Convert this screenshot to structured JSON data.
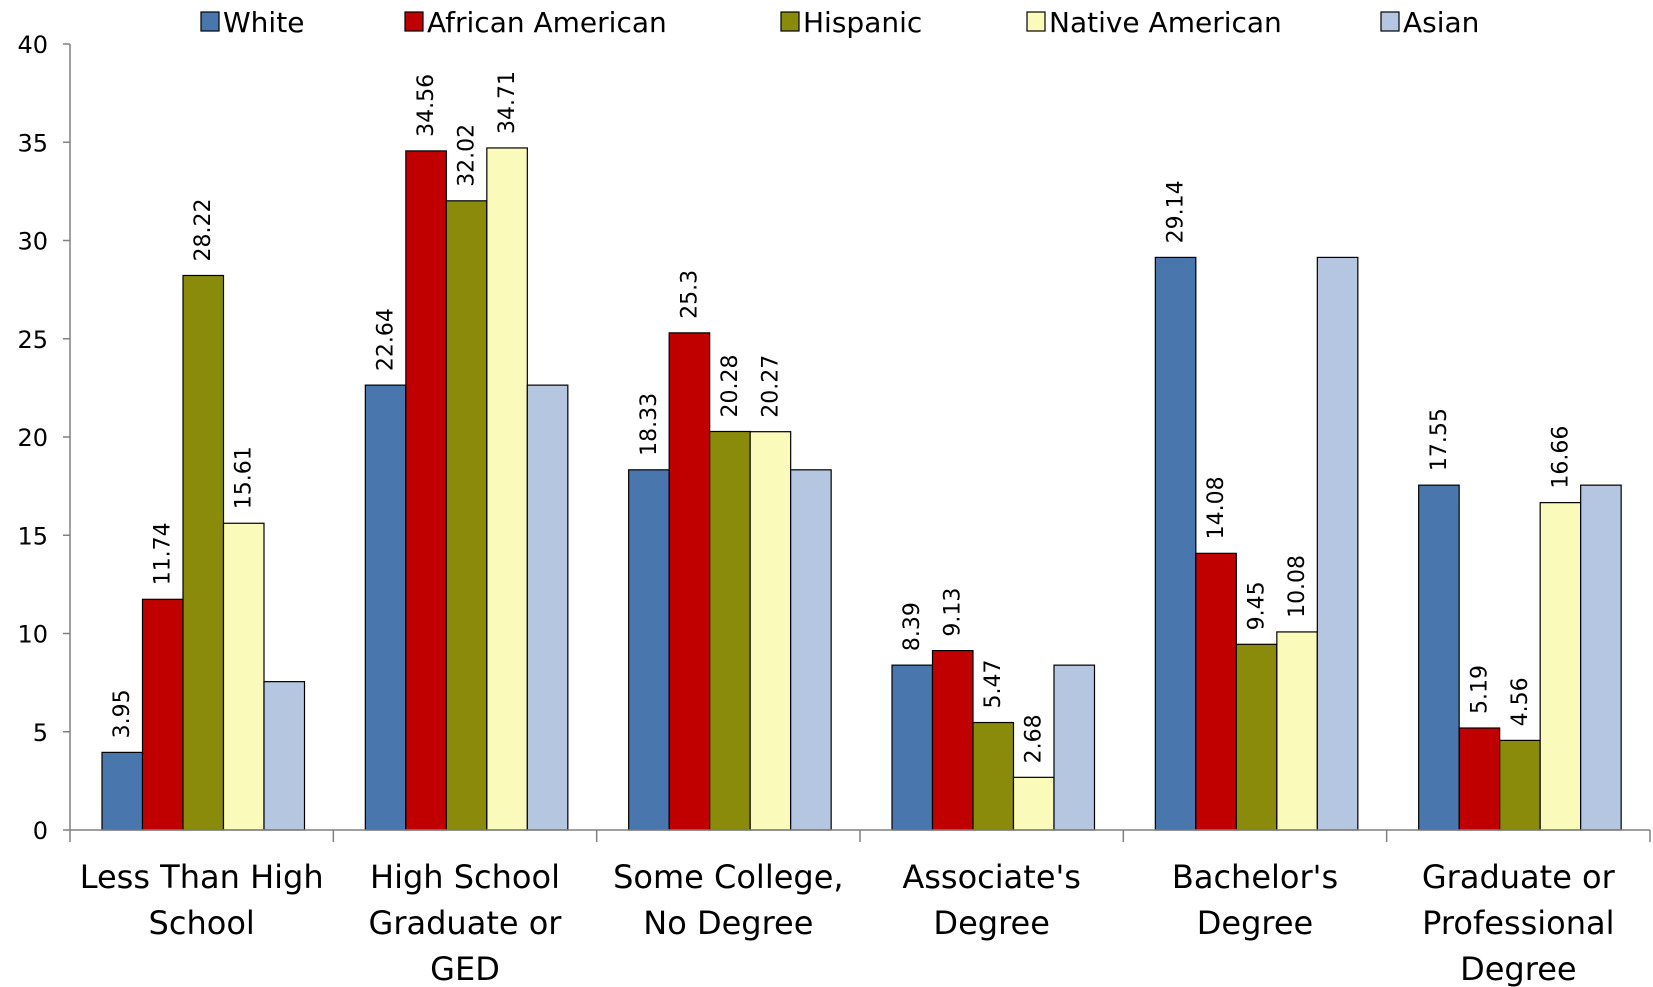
{
  "chart_data": {
    "type": "bar",
    "categories": [
      [
        "Less Than High",
        "School"
      ],
      [
        "High School",
        "Graduate or",
        "GED"
      ],
      [
        "Some College,",
        "No Degree"
      ],
      [
        "Associate's",
        "Degree"
      ],
      [
        "Bachelor's",
        "Degree"
      ],
      [
        "Graduate or",
        "Professional",
        "Degree"
      ]
    ],
    "series": [
      {
        "name": "White",
        "color": "#4a76ae",
        "values": [
          3.95,
          22.64,
          18.33,
          8.39,
          29.14,
          17.55
        ],
        "labels": [
          "3.95",
          "22.64",
          "18.33",
          "8.39",
          "29.14",
          "17.55"
        ]
      },
      {
        "name": "African American",
        "color": "#c00000",
        "values": [
          11.74,
          34.56,
          25.3,
          9.13,
          14.08,
          5.19
        ],
        "labels": [
          "11.74",
          "34.56",
          "25.3",
          "9.13",
          "14.08",
          "5.19"
        ]
      },
      {
        "name": "Hispanic",
        "color": "#8a8a0b",
        "values": [
          28.22,
          32.02,
          20.28,
          5.47,
          9.45,
          4.56
        ],
        "labels": [
          "28.22",
          "32.02",
          "20.28",
          "5.47",
          "9.45",
          "4.56"
        ]
      },
      {
        "name": "Native American",
        "color": "#fafabb",
        "values": [
          15.61,
          34.71,
          20.27,
          2.68,
          10.08,
          16.66
        ],
        "labels": [
          "15.61",
          "34.71",
          "20.27",
          "2.68",
          "10.08",
          "16.66"
        ]
      },
      {
        "name": "Asian",
        "color": "#b4c6e0",
        "values": [
          7.55,
          22.64,
          18.33,
          8.39,
          29.14,
          17.55
        ],
        "labels": [
          "",
          "",
          "",
          "",
          "",
          ""
        ]
      }
    ],
    "ylim": [
      0,
      40
    ],
    "yticks": [
      "0",
      "5",
      "10",
      "15",
      "20",
      "25",
      "30",
      "35",
      "40"
    ],
    "grid": false,
    "legend_position": "top"
  }
}
